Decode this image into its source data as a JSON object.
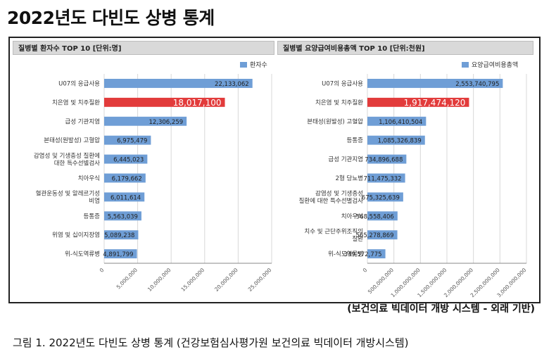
{
  "page": {
    "title": "2022년도 다빈도 상병 통계",
    "source_note": "(보건의료 빅데이터 개방 시스템 - 외래 기반)",
    "caption": "그림 1.  2022년도 다빈도 상병 통계 (건강보험심사평가원 보건의료 빅데이터 개방시스템)"
  },
  "colors": {
    "bar": "#6f9ed6",
    "highlight": "#e23b3b",
    "grid": "#d8d8d8",
    "axis": "#888888"
  },
  "chart_data": [
    {
      "type": "bar",
      "orientation": "horizontal",
      "title": "질병별 환자수 TOP 10 [단위:명]",
      "legend": "환자수",
      "legend_position": "top-right",
      "categories": [
        "U07의 응급사용",
        "치은염 및 치주질환",
        "급성 기관지염",
        "본태성(원발성) 고혈압",
        "감염성 및 기생충성 질환에\n대한 특수선별검사",
        "치아우식",
        "혈관운동성 및 알레르기성\n비염",
        "등통증",
        "위염 및 십이지장염",
        "위-식도역류병"
      ],
      "values": [
        22133062,
        18017100,
        12306259,
        6975479,
        6445023,
        6179662,
        6011614,
        5563039,
        5089238,
        4891799
      ],
      "value_labels": [
        "22,133,062",
        "18,017,100",
        "12,306,259",
        "6,975,479",
        "6,445,023",
        "6,179,662",
        "6,011,614",
        "5,563,039",
        "5,089,238",
        "4,891,799"
      ],
      "highlight_index": 1,
      "xlim": [
        0,
        25000000
      ],
      "xticks": [
        0,
        5000000,
        10000000,
        15000000,
        20000000,
        25000000
      ],
      "xtick_labels": [
        "0",
        "5,000,000",
        "10,000,000",
        "15,000,000",
        "20,000,000",
        "25,000,000"
      ],
      "grid": true
    },
    {
      "type": "bar",
      "orientation": "horizontal",
      "title": "질병별 요양급여비용총액 TOP 10 [단위:천원]",
      "legend": "요양급여비용총액",
      "legend_position": "top-right",
      "categories": [
        "U07의 응급사용",
        "치은염 및 치주질환",
        "본태성(원발성) 고혈압",
        "등통증",
        "급성 기관지염",
        "2형 당뇨병",
        "감염성 및 기생충성\n질환에 대한 특수선별검사",
        "치아우식",
        "치수 및 근단주위조직의\n질환",
        "위-식도역류병"
      ],
      "values": [
        2553740795,
        1917474120,
        1106410504,
        1085326839,
        734896688,
        711475332,
        675325639,
        568558406,
        565278869,
        339572775
      ],
      "value_labels": [
        "2,553,740,795",
        "1,917,474,120",
        "1,106,410,504",
        "1,085,326,839",
        "734,896,688",
        "711,475,332",
        "675,325,639",
        "568,558,406",
        "565,278,869",
        "339,572,775"
      ],
      "highlight_index": 1,
      "xlim": [
        0,
        3000000000
      ],
      "xticks": [
        0,
        500000000,
        1000000000,
        1500000000,
        2000000000,
        2500000000,
        3000000000
      ],
      "xtick_labels": [
        "0",
        "500,000,000",
        "1,000,000,000",
        "1,500,000,000",
        "2,000,000,000",
        "2,500,000,000",
        "3,000,000,000"
      ],
      "grid": true
    }
  ]
}
